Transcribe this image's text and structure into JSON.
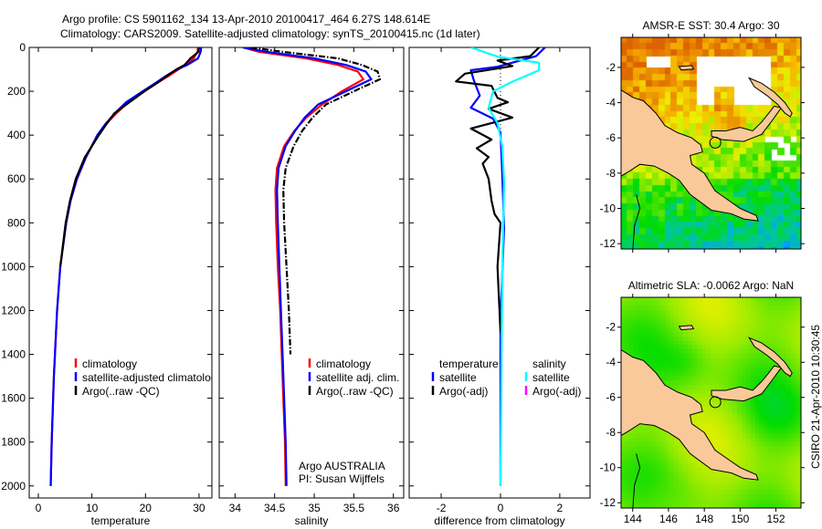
{
  "title": {
    "line1": "Argo profile: CS 5901162_134 13-Apr-2010 20100417_464 6.27S 148.614E",
    "line2": "Climatology: CARS2009. Satellite-adjusted climatology: synTS_20100415.nc (1d later)"
  },
  "colors": {
    "climatology": "#ff0000",
    "satellite": "#0000ff",
    "argo": "#000000",
    "sal_satellite": "#00ffff",
    "sal_argo": "#ff00ff",
    "land": "#f9c99a"
  },
  "chart_data": [
    {
      "type": "line",
      "id": "temperature",
      "xlabel": "temperature",
      "ylabel": "",
      "xlim": [
        -1.7,
        32.4
      ],
      "ylim": [
        0,
        2055
      ],
      "y_reversed": true,
      "xticks": [
        0,
        10,
        20,
        30
      ],
      "yticks": [
        0,
        200,
        400,
        600,
        800,
        1000,
        1200,
        1400,
        1600,
        1800,
        2000
      ],
      "show_ytick_labels": true,
      "legend": [
        {
          "label": "climatology",
          "color": "#ff0000"
        },
        {
          "label": "satellite-adjusted climatology",
          "color": "#0000ff"
        },
        {
          "label": "Argo(..raw -QC)",
          "color": "#000000"
        }
      ],
      "series": [
        {
          "name": "climatology",
          "color": "#ff0000",
          "style": "solid",
          "depth": [
            0,
            20,
            50,
            80,
            100,
            130,
            160,
            200,
            250,
            300,
            350,
            400,
            500,
            600,
            700,
            800,
            1000,
            1200,
            1500,
            1800,
            2000
          ],
          "values": [
            29.8,
            29.7,
            29.0,
            27.5,
            26.2,
            24.3,
            22.3,
            19.8,
            16.8,
            14.6,
            12.6,
            11.1,
            8.9,
            7.2,
            6.0,
            5.2,
            4.1,
            3.5,
            2.9,
            2.5,
            2.3
          ]
        },
        {
          "name": "satellite-adjusted climatology",
          "color": "#0000ff",
          "style": "solid",
          "depth": [
            0,
            20,
            50,
            80,
            100,
            130,
            160,
            200,
            250,
            300,
            350,
            400,
            500,
            600,
            700,
            800,
            1000,
            1200,
            1500,
            1800,
            2000
          ],
          "values": [
            30.4,
            30.3,
            29.8,
            27.8,
            25.9,
            23.8,
            22.0,
            19.5,
            16.4,
            14.3,
            12.5,
            11.0,
            8.9,
            7.2,
            6.0,
            5.2,
            4.1,
            3.5,
            2.9,
            2.5,
            2.3
          ]
        },
        {
          "name": "Argo(..raw -QC)",
          "color": "#000000",
          "style": "solid",
          "depth": [
            0,
            20,
            50,
            80,
            100,
            130,
            160,
            200,
            250,
            300,
            350,
            400,
            500,
            600,
            700,
            800,
            1000
          ],
          "values": [
            30.0,
            29.9,
            28.4,
            27.3,
            25.8,
            24.0,
            22.3,
            19.8,
            17.0,
            14.2,
            12.7,
            11.3,
            8.7,
            7.0,
            5.9,
            5.1,
            4.1
          ]
        }
      ]
    },
    {
      "type": "line",
      "id": "salinity",
      "xlabel": "salinity",
      "xlim": [
        33.8,
        36.13
      ],
      "ylim": [
        0,
        2055
      ],
      "y_reversed": true,
      "xticks": [
        34,
        34.5,
        35,
        35.5,
        36
      ],
      "yticks": [
        0,
        200,
        400,
        600,
        800,
        1000,
        1200,
        1400,
        1600,
        1800,
        2000
      ],
      "show_ytick_labels": false,
      "legend": [
        {
          "label": "climatology",
          "color": "#ff0000"
        },
        {
          "label": "satellite adj. clim.",
          "color": "#0000ff"
        },
        {
          "label": "Argo(..raw -QC)",
          "color": "#000000"
        }
      ],
      "annotation": [
        "Argo AUSTRALIA",
        "PI: Susan Wijffels"
      ],
      "series": [
        {
          "name": "climatology",
          "color": "#ff0000",
          "style": "solid",
          "depth": [
            0,
            20,
            50,
            80,
            110,
            145,
            200,
            260,
            320,
            380,
            450,
            550,
            650,
            800,
            1000,
            1200,
            1400,
            1600,
            1800,
            2000
          ],
          "values": [
            34.1,
            34.3,
            34.9,
            35.3,
            35.55,
            35.62,
            35.35,
            35.1,
            34.9,
            34.75,
            34.62,
            34.53,
            34.51,
            34.52,
            34.54,
            34.57,
            34.59,
            34.61,
            34.63,
            34.64
          ]
        },
        {
          "name": "satellite adj. clim.",
          "color": "#0000ff",
          "style": "solid",
          "depth": [
            0,
            20,
            50,
            80,
            110,
            145,
            200,
            260,
            320,
            380,
            450,
            550,
            650,
            800,
            1000,
            1200,
            1400,
            1600,
            1800,
            2000
          ],
          "values": [
            34.1,
            34.4,
            35.0,
            35.4,
            35.65,
            35.72,
            35.4,
            35.05,
            34.88,
            34.76,
            34.64,
            34.55,
            34.53,
            34.54,
            34.56,
            34.58,
            34.6,
            34.62,
            34.64,
            34.65
          ]
        },
        {
          "name": "Argo(..raw -QC)",
          "color": "#000000",
          "style": "dashdot",
          "depth": [
            0,
            20,
            50,
            80,
            110,
            145,
            200,
            260,
            320,
            380,
            450,
            550,
            650,
            800,
            1000,
            1200,
            1400
          ],
          "values": [
            34.2,
            34.6,
            35.3,
            35.6,
            35.8,
            35.83,
            35.5,
            35.15,
            34.98,
            34.85,
            34.74,
            34.64,
            34.61,
            34.62,
            34.65,
            34.68,
            34.7
          ]
        }
      ]
    },
    {
      "type": "line",
      "id": "difference",
      "xlabel": "difference from climatology",
      "xlim": [
        -3.08,
        3.02
      ],
      "ylim": [
        0,
        2055
      ],
      "y_reversed": true,
      "xticks": [
        -2,
        0,
        2
      ],
      "yticks": [
        0,
        200,
        400,
        600,
        800,
        1000,
        1200,
        1400,
        1600,
        1800,
        2000
      ],
      "show_ytick_labels": false,
      "legend_temperature": {
        "header": "temperature",
        "items": [
          {
            "label": "satellite",
            "color": "#0000ff"
          },
          {
            "label": "Argo(-adj)",
            "color": "#000000"
          }
        ]
      },
      "legend_salinity": {
        "header": "salinity",
        "items": [
          {
            "label": "satellite",
            "color": "#00ffff"
          },
          {
            "label": "Argo(-adj)",
            "color": "#ff00ff"
          }
        ]
      },
      "series": [
        {
          "name": "temperature satellite",
          "color": "#0000ff",
          "style": "solid",
          "depth": [
            0,
            40,
            88,
            104,
            150,
            220,
            275,
            325,
            388,
            575,
            825,
            1240,
            2000
          ],
          "values": [
            1.5,
            1.2,
            -0.1,
            -1.0,
            -0.9,
            -0.7,
            -1.0,
            -0.25,
            0.0,
            0.06,
            0.12,
            0.0,
            0.0
          ]
        },
        {
          "name": "temperature Argo(-adj)",
          "color": "#000000",
          "style": "solid",
          "depth": [
            0,
            40,
            60,
            85,
            120,
            155,
            175,
            230,
            250,
            280,
            320,
            370,
            420,
            460,
            500,
            530,
            600,
            700,
            760,
            800,
            1000,
            1300
          ],
          "values": [
            1.3,
            1.0,
            -0.1,
            0.4,
            -1.2,
            -1.5,
            -0.3,
            -0.1,
            0.25,
            -0.4,
            0.4,
            -1.0,
            -0.3,
            -0.8,
            -0.4,
            -0.6,
            -0.4,
            -0.3,
            -0.2,
            0.0,
            -0.1,
            0.0
          ]
        },
        {
          "name": "salinity satellite",
          "color": "#00ffff",
          "style": "solid",
          "depth": [
            0,
            42,
            70,
            104,
            158,
            200,
            275,
            346,
            450,
            617,
            1033,
            2000
          ],
          "values": [
            -1.0,
            -0.1,
            1.3,
            1.3,
            0.37,
            -0.25,
            -0.4,
            -0.1,
            0.06,
            0.12,
            0.06,
            0.0
          ]
        }
      ]
    }
  ],
  "maps": [
    {
      "id": "sst",
      "title": "AMSR-E SST: 30.4 Argo: 30",
      "lon_ticks": [
        144,
        146,
        148,
        150,
        152
      ],
      "lat_ticks": [
        -2,
        -4,
        -6,
        -8,
        -10,
        -12
      ],
      "show_lon_labels": false
    },
    {
      "id": "sla",
      "title": "Altimetric SLA: -0.0062 Argo: NaN",
      "lon_ticks": [
        144,
        146,
        148,
        150,
        152
      ],
      "lat_ticks": [
        -2,
        -4,
        -6,
        -8,
        -10,
        -12
      ],
      "show_lon_labels": true
    }
  ],
  "profile_location": {
    "lon": 148.614,
    "lat": -6.27
  },
  "footer": "CSIRO 21-Apr-2010 10:30:45"
}
